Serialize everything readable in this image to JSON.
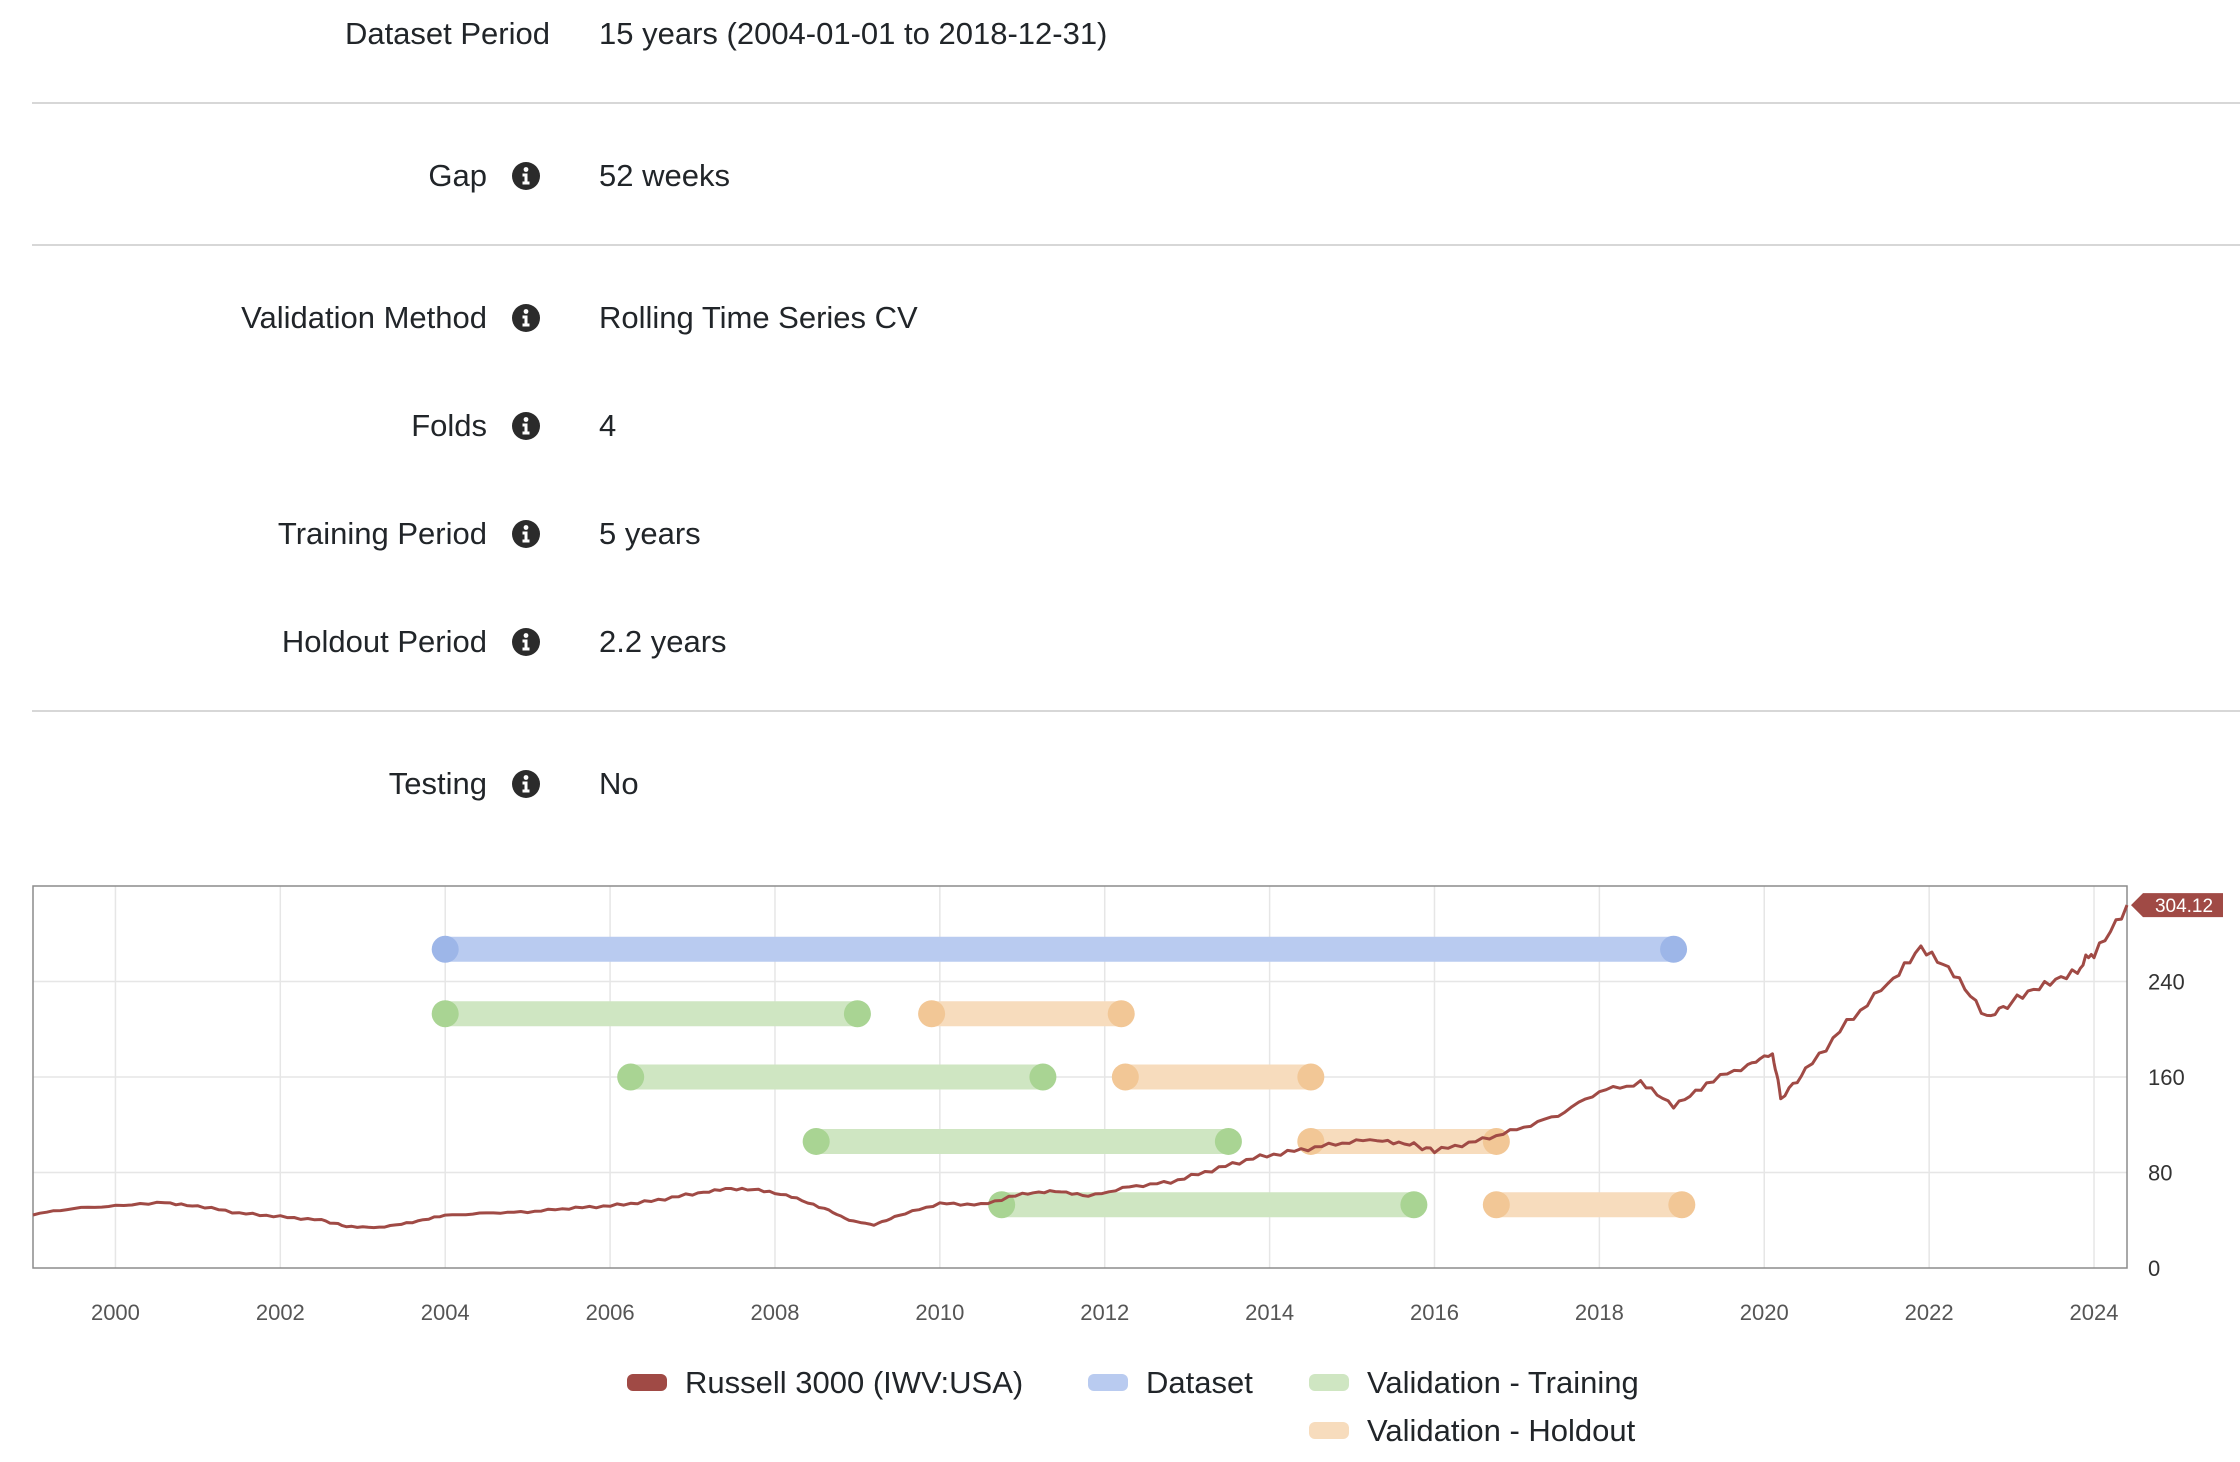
{
  "settings": {
    "dataset_period": {
      "label": "Dataset Period",
      "value": "15 years (2004-01-01 to 2018-12-31)"
    },
    "gap": {
      "label": "Gap",
      "value": "52 weeks"
    },
    "validation_method": {
      "label": "Validation Method",
      "value": "Rolling Time Series CV"
    },
    "folds": {
      "label": "Folds",
      "value": "4"
    },
    "training_period": {
      "label": "Training Period",
      "value": "5 years"
    },
    "holdout_period": {
      "label": "Holdout Period",
      "value": "2.2 years"
    },
    "testing": {
      "label": "Testing",
      "value": "No"
    }
  },
  "icons": {
    "info": "info-circle-icon"
  },
  "colors": {
    "russell": "#a04a45",
    "dataset": "#9db6e8",
    "training": "#a9d493",
    "holdout": "#f2c796",
    "info_icon": "#2b2b2b",
    "grid": "#e3e3e3"
  },
  "chart_data": {
    "type": "line",
    "x_ticks": [
      "2000",
      "2002",
      "2004",
      "2006",
      "2008",
      "2010",
      "2012",
      "2014",
      "2016",
      "2018",
      "2020",
      "2022",
      "2024"
    ],
    "y_ticks": [
      "0",
      "80",
      "160",
      "240"
    ],
    "xlim": [
      1999.0,
      2024.4
    ],
    "ylim": [
      0,
      320
    ],
    "last_value_label": "304.12",
    "legend": [
      {
        "name": "Russell 3000 (IWV:USA)",
        "color": "#a04a45"
      },
      {
        "name": "Dataset",
        "color": "#9db6e8"
      },
      {
        "name": "Validation - Training",
        "color": "#a9d493"
      },
      {
        "name": "Validation - Holdout",
        "color": "#f2c796"
      }
    ],
    "series": [
      {
        "name": "Russell 3000 (IWV:USA)",
        "points": [
          [
            1999.0,
            45
          ],
          [
            1999.5,
            50
          ],
          [
            2000.0,
            52
          ],
          [
            2000.6,
            55
          ],
          [
            2001.0,
            52
          ],
          [
            2001.5,
            46
          ],
          [
            2002.0,
            43
          ],
          [
            2002.5,
            40
          ],
          [
            2002.8,
            35
          ],
          [
            2003.2,
            34
          ],
          [
            2003.6,
            38
          ],
          [
            2004.0,
            44
          ],
          [
            2004.5,
            46
          ],
          [
            2005.0,
            47
          ],
          [
            2005.5,
            50
          ],
          [
            2006.0,
            52
          ],
          [
            2006.5,
            56
          ],
          [
            2007.0,
            62
          ],
          [
            2007.4,
            66
          ],
          [
            2007.8,
            65
          ],
          [
            2008.2,
            60
          ],
          [
            2008.6,
            50
          ],
          [
            2008.9,
            40
          ],
          [
            2009.2,
            36
          ],
          [
            2009.5,
            44
          ],
          [
            2010.0,
            54
          ],
          [
            2010.5,
            53
          ],
          [
            2011.0,
            62
          ],
          [
            2011.4,
            64
          ],
          [
            2011.8,
            60
          ],
          [
            2012.3,
            68
          ],
          [
            2012.8,
            72
          ],
          [
            2013.3,
            82
          ],
          [
            2013.8,
            92
          ],
          [
            2014.3,
            98
          ],
          [
            2014.8,
            104
          ],
          [
            2015.3,
            108
          ],
          [
            2015.7,
            104
          ],
          [
            2016.0,
            98
          ],
          [
            2016.5,
            106
          ],
          [
            2017.0,
            116
          ],
          [
            2017.5,
            128
          ],
          [
            2018.0,
            148
          ],
          [
            2018.5,
            155
          ],
          [
            2018.9,
            136
          ],
          [
            2019.3,
            155
          ],
          [
            2019.8,
            170
          ],
          [
            2020.1,
            180
          ],
          [
            2020.2,
            142
          ],
          [
            2020.5,
            165
          ],
          [
            2021.0,
            205
          ],
          [
            2021.5,
            238
          ],
          [
            2021.9,
            267
          ],
          [
            2022.3,
            245
          ],
          [
            2022.7,
            210
          ],
          [
            2023.0,
            222
          ],
          [
            2023.4,
            236
          ],
          [
            2023.8,
            250
          ],
          [
            2024.0,
            265
          ],
          [
            2024.4,
            304
          ]
        ]
      }
    ],
    "ranges": [
      {
        "series": "Dataset",
        "start": 2004.0,
        "end": 2018.9,
        "y": 267
      },
      {
        "series": "Validation - Training",
        "start": 2004.0,
        "end": 2009.0,
        "y": 213
      },
      {
        "series": "Validation - Holdout",
        "start": 2009.9,
        "end": 2012.2,
        "y": 213
      },
      {
        "series": "Validation - Training",
        "start": 2006.25,
        "end": 2011.25,
        "y": 160
      },
      {
        "series": "Validation - Holdout",
        "start": 2012.25,
        "end": 2014.5,
        "y": 160
      },
      {
        "series": "Validation - Training",
        "start": 2008.5,
        "end": 2013.5,
        "y": 106
      },
      {
        "series": "Validation - Holdout",
        "start": 2014.5,
        "end": 2016.75,
        "y": 106
      },
      {
        "series": "Validation - Training",
        "start": 2010.75,
        "end": 2015.75,
        "y": 53
      },
      {
        "series": "Validation - Holdout",
        "start": 2016.75,
        "end": 2019.0,
        "y": 53
      }
    ]
  }
}
